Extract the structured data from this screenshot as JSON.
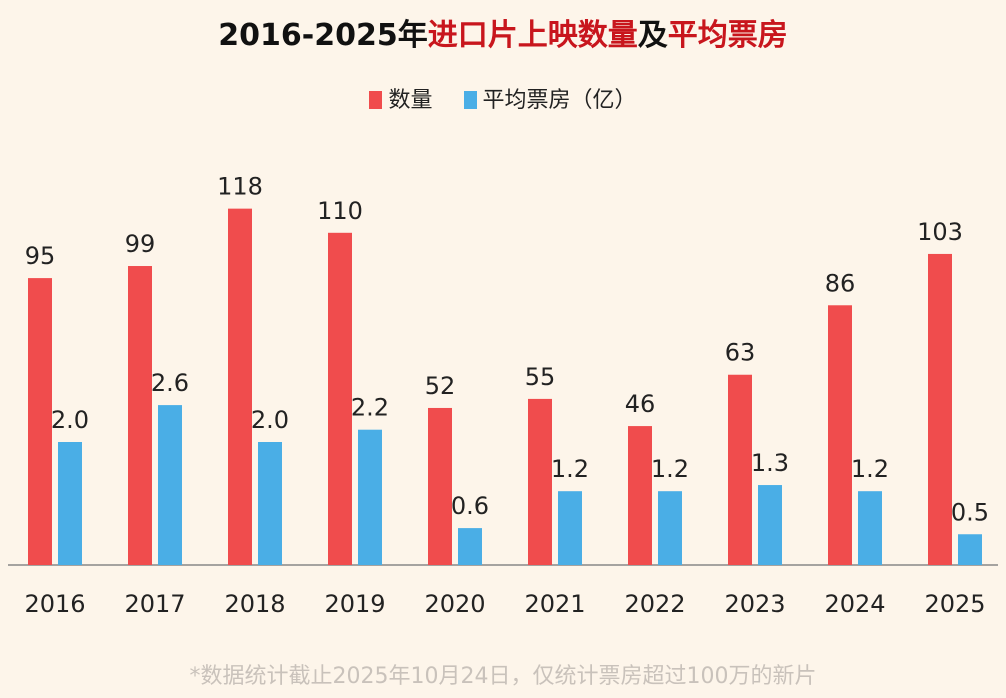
{
  "colors": {
    "count": "#f04c4d",
    "avg": "#4aaee6",
    "title_highlight": "#c8161d",
    "background": "#fdf5ea"
  },
  "title": {
    "part1": "2016-2025年",
    "part2": "进口片上映数量",
    "part3": "及",
    "part4": "平均票房"
  },
  "footnote": "*数据统计截止2025年10月24日，仅统计票房超过100万的新片",
  "chart_data": {
    "type": "bar",
    "title": "2016-2025年进口片上映数量及平均票房",
    "categories": [
      "2016",
      "2017",
      "2018",
      "2019",
      "2020",
      "2021",
      "2022",
      "2023",
      "2024",
      "2025"
    ],
    "series": [
      {
        "name": "数量",
        "values": [
          95,
          99,
          118,
          110,
          52,
          55,
          46,
          63,
          86,
          103
        ],
        "labels": [
          "95",
          "99",
          "118",
          "110",
          "52",
          "55",
          "46",
          "63",
          "86",
          "103"
        ]
      },
      {
        "name": "平均票房（亿）",
        "values": [
          2.0,
          2.6,
          2.0,
          2.2,
          0.6,
          1.2,
          1.2,
          1.3,
          1.2,
          0.5
        ],
        "labels": [
          "2.0",
          "2.6",
          "2.0",
          "2.2",
          "0.6",
          "1.2",
          "1.2",
          "1.3",
          "1.2",
          "0.5"
        ]
      }
    ],
    "legend": "top-center",
    "grid": false,
    "dual_scale": true
  }
}
